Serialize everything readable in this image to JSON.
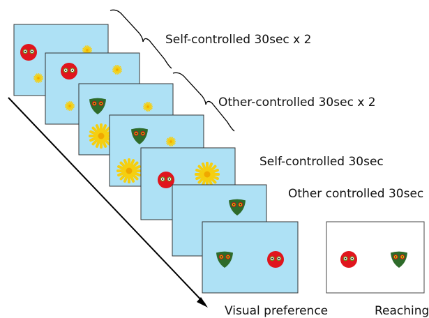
{
  "labels": {
    "self_x2": "Self-controlled 30sec x 2",
    "other_x2": "Other-controlled 30sec x 2",
    "self": "Self-controlled 30sec",
    "other": "Other controlled 30sec"
  },
  "footer": {
    "visual": "Visual preference",
    "reaching": "Reaching"
  }
}
